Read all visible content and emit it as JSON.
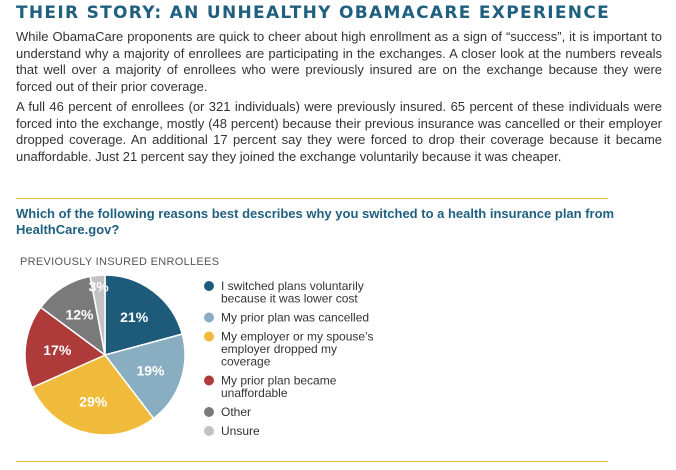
{
  "article": {
    "title": "THEIR STORY: AN UNHEALTHY OBAMACARE EXPERIENCE",
    "paragraph1": "While ObamaCare proponents are quick to cheer about high enrollment as a sign of “success”, it is important to understand why a majority of enrollees are participating in the exchanges. A closer look at the numbers reveals that well over a majority of enrollees who were previously insured are on the exchange because they were forced out of their prior coverage.",
    "paragraph2": "A full 46 percent of enrollees (or 321 individuals) were previously insured. 65 percent of these individuals were forced into the exchange, mostly (48 percent) because their previous insurance was cancelled or their employer dropped coverage. An additional 17 percent say they were forced to drop their coverage because it became unaffordable. Just 21 percent say they joined the exchange voluntarily because it was cheaper."
  },
  "colors": {
    "title": "#1f5f7f",
    "rule": "#f0bb3a"
  },
  "chart_data": {
    "type": "pie",
    "question": "Which of the following reasons best describes why you switched to a health insurance plan from HealthCare.gov?",
    "title": "PREVIOUSLY INSURED ENROLLEES",
    "unit": "%",
    "start_angle_deg": 0,
    "direction": "clockwise",
    "legend_position": "right",
    "slices": [
      {
        "label_lines": [
          "I switched plans voluntarily",
          "because it was lower cost"
        ],
        "value": 21,
        "display": "21%",
        "color": "#1e5a7a",
        "label_color": "#ffffff"
      },
      {
        "label_lines": [
          "My prior plan was cancelled"
        ],
        "value": 19,
        "display": "19%",
        "color": "#89aec2",
        "label_color": "#ffffff"
      },
      {
        "label_lines": [
          "My employer or my spouse’s",
          "employer dropped my",
          "coverage"
        ],
        "value": 29,
        "display": "29%",
        "color": "#f0bb3a",
        "label_color": "#ffffff"
      },
      {
        "label_lines": [
          "My prior plan became",
          "unaffordable"
        ],
        "value": 17,
        "display": "17%",
        "color": "#ae3a3a",
        "label_color": "#ffffff"
      },
      {
        "label_lines": [
          "Other"
        ],
        "value": 12,
        "display": "12%",
        "color": "#7a7a7a",
        "label_color": "#ffffff"
      },
      {
        "label_lines": [
          "Unsure"
        ],
        "value": 3,
        "display": "3%",
        "color": "#c2c2c2",
        "label_color": "#ffffff"
      }
    ]
  }
}
